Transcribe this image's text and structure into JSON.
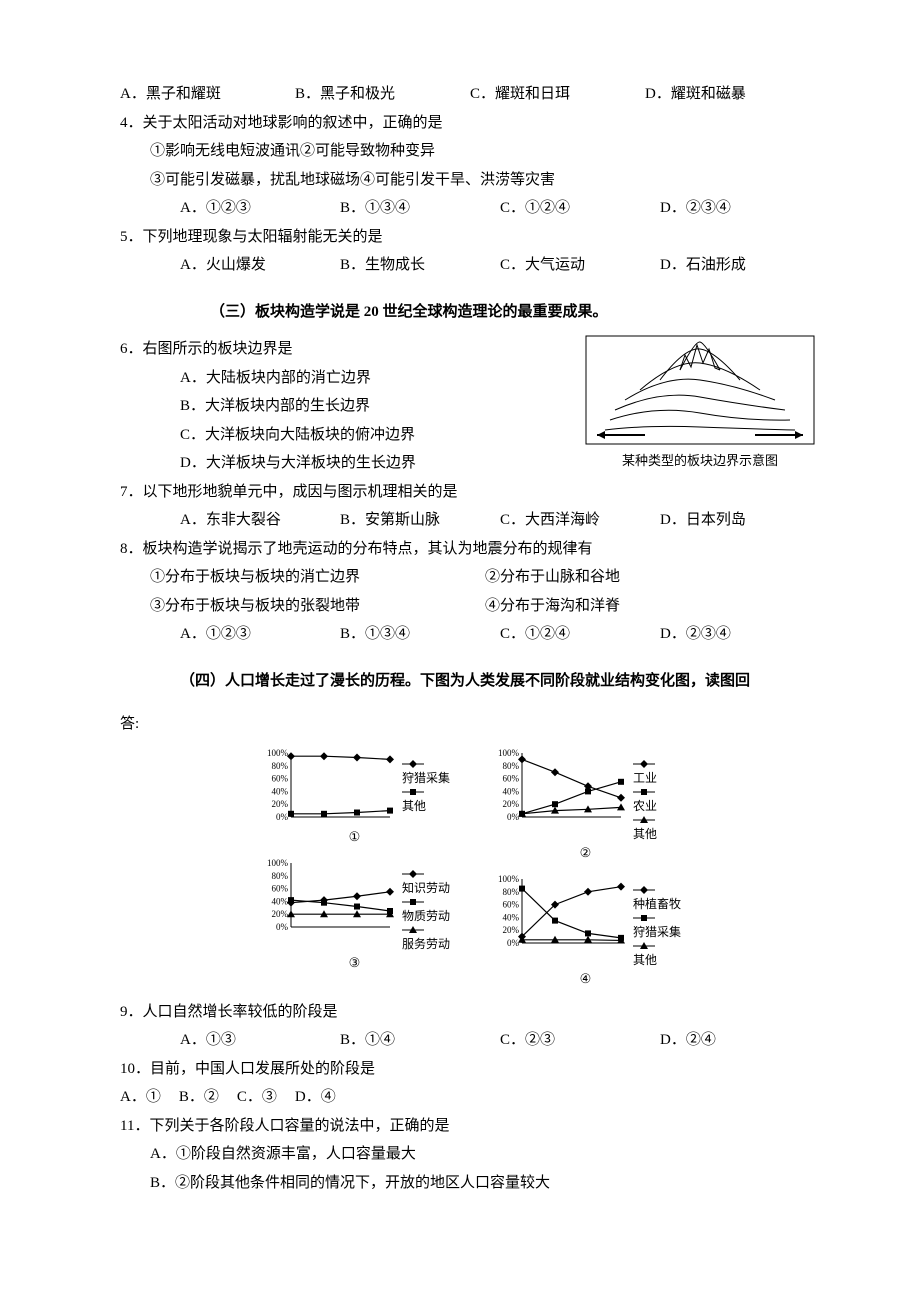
{
  "q3": {
    "opts": [
      "A．黑子和耀斑",
      "B．黑子和极光",
      "C．耀斑和日珥",
      "D．耀斑和磁暴"
    ]
  },
  "q4": {
    "stem": "4．关于太阳活动对地球影响的叙述中，正确的是",
    "s1": "①影响无线电短波通讯②可能导致物种变异",
    "s2": "③可能引发磁暴，扰乱地球磁场④可能引发干旱、洪涝等灾害",
    "opts": [
      "A．①②③",
      "B．①③④",
      "C．①②④",
      "D．②③④"
    ]
  },
  "q5": {
    "stem": "5．下列地理现象与太阳辐射能无关的是",
    "opts": [
      "A．火山爆发",
      "B．生物成长",
      "C．大气运动",
      "D．石油形成"
    ]
  },
  "sec3": "（三）板块构造学说是 20 世纪全球构造理论的最重要成果。",
  "q6": {
    "stem": "6．右图所示的板块边界是",
    "a": "A．大陆板块内部的消亡边界",
    "b": "B．大洋板块内部的生长边界",
    "c": "C．大洋板块向大陆板块的俯冲边界",
    "d": "D．大洋板块与大洋板块的生长边界",
    "caption": "某种类型的板块边界示意图"
  },
  "q7": {
    "stem": "7．以下地形地貌单元中，成因与图示机理相关的是",
    "opts": [
      "A．东非大裂谷",
      "B．安第斯山脉",
      "C．大西洋海岭",
      "D．日本列岛"
    ]
  },
  "q8": {
    "stem": "8．板块构造学说揭示了地壳运动的分布特点，其认为地震分布的规律有",
    "s1a": "①分布于板块与板块的消亡边界",
    "s1b": "②分布于山脉和谷地",
    "s2a": "③分布于板块与板块的张裂地带",
    "s2b": "④分布于海沟和洋脊",
    "opts": [
      "A．①②③",
      "B．①③④",
      "C．①②④",
      "D．②③④"
    ]
  },
  "sec4": "（四）人口增长走过了漫长的历程。下图为人类发展不同阶段就业结构变化图，读图回",
  "answerLabel": "答:",
  "charts": {
    "axis_labels": [
      "100%",
      "80%",
      "60%",
      "40%",
      "20%",
      "0%"
    ],
    "axis_fontsize": 9,
    "legend_fontsize": 12,
    "plot_bg": "#ffffff",
    "axis_color": "#000000",
    "line_color": "#000000",
    "c1": {
      "label": "①",
      "series": [
        {
          "name": "狩猎采集",
          "marker": "diamond",
          "y": [
            95,
            95,
            93,
            90
          ]
        },
        {
          "name": "其他",
          "marker": "square",
          "y": [
            5,
            5,
            7,
            10
          ]
        }
      ]
    },
    "c2": {
      "label": "②",
      "series": [
        {
          "name": "工业",
          "marker": "diamond",
          "y": [
            90,
            70,
            48,
            30
          ]
        },
        {
          "name": "农业",
          "marker": "square",
          "y": [
            5,
            20,
            40,
            55
          ]
        },
        {
          "name": "其他",
          "marker": "triangle",
          "y": [
            5,
            10,
            12,
            15
          ]
        }
      ]
    },
    "c3": {
      "label": "③",
      "series": [
        {
          "name": "知识劳动",
          "marker": "diamond",
          "y": [
            38,
            42,
            48,
            55
          ]
        },
        {
          "name": "物质劳动",
          "marker": "square",
          "y": [
            42,
            38,
            32,
            25
          ]
        },
        {
          "name": "服务劳动",
          "marker": "triangle",
          "y": [
            20,
            20,
            20,
            20
          ]
        }
      ]
    },
    "c4": {
      "label": "④",
      "series": [
        {
          "name": "种植畜牧",
          "marker": "diamond",
          "y": [
            10,
            60,
            80,
            88
          ]
        },
        {
          "name": "狩猎采集",
          "marker": "square",
          "y": [
            85,
            35,
            15,
            8
          ]
        },
        {
          "name": "其他",
          "marker": "triangle",
          "y": [
            5,
            5,
            5,
            4
          ]
        }
      ]
    }
  },
  "q9": {
    "stem": "9．人口自然增长率较低的阶段是",
    "opts": [
      "A．①③",
      "B．①④",
      "C．②③",
      "D．②④"
    ]
  },
  "q10": {
    "stem": "10．目前，中国人口发展所处的阶段是",
    "opts": [
      "A．①",
      "B．②",
      "C．③",
      "D．④"
    ]
  },
  "q11": {
    "stem": "11．下列关于各阶段人口容量的说法中，正确的是",
    "a": "A．①阶段自然资源丰富，人口容量最大",
    "b": "B．②阶段其他条件相同的情况下，开放的地区人口容量较大"
  }
}
